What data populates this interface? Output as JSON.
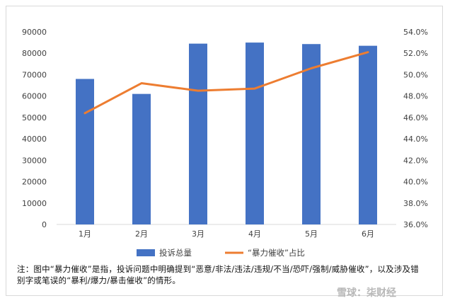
{
  "chart_data": {
    "type": "bar",
    "categories": [
      "1月",
      "2月",
      "3月",
      "4月",
      "5月",
      "6月"
    ],
    "series": [
      {
        "name": "投诉总量",
        "type": "bar",
        "axis": "left",
        "color": "#4472C4",
        "values": [
          68000,
          61000,
          84500,
          85000,
          84300,
          83500
        ]
      },
      {
        "name": "“暴力催收”占比",
        "type": "line",
        "axis": "right",
        "color": "#ED7D31",
        "values": [
          0.464,
          0.492,
          0.485,
          0.487,
          0.506,
          0.521
        ]
      }
    ],
    "ylim_left": [
      0,
      90000
    ],
    "yticks_left": [
      "0",
      "10000",
      "20000",
      "30000",
      "40000",
      "50000",
      "60000",
      "70000",
      "80000",
      "90000"
    ],
    "ylim_right": [
      0.36,
      0.54
    ],
    "yticks_right": [
      "36.0%",
      "38.0%",
      "40.0%",
      "42.0%",
      "44.0%",
      "46.0%",
      "48.0%",
      "50.0%",
      "52.0%",
      "54.0%"
    ],
    "legend_position": "bottom",
    "grid": false
  },
  "note": "注：图中“暴力催收”是指，投诉问题中明确提到“恶意/非法/违法/违规/不当/恐吓/强制/威胁催收”，以及涉及错别字或笔误的“暴利/爆力/暴击催收”的情形。",
  "watermark": "雪球：柒财经"
}
